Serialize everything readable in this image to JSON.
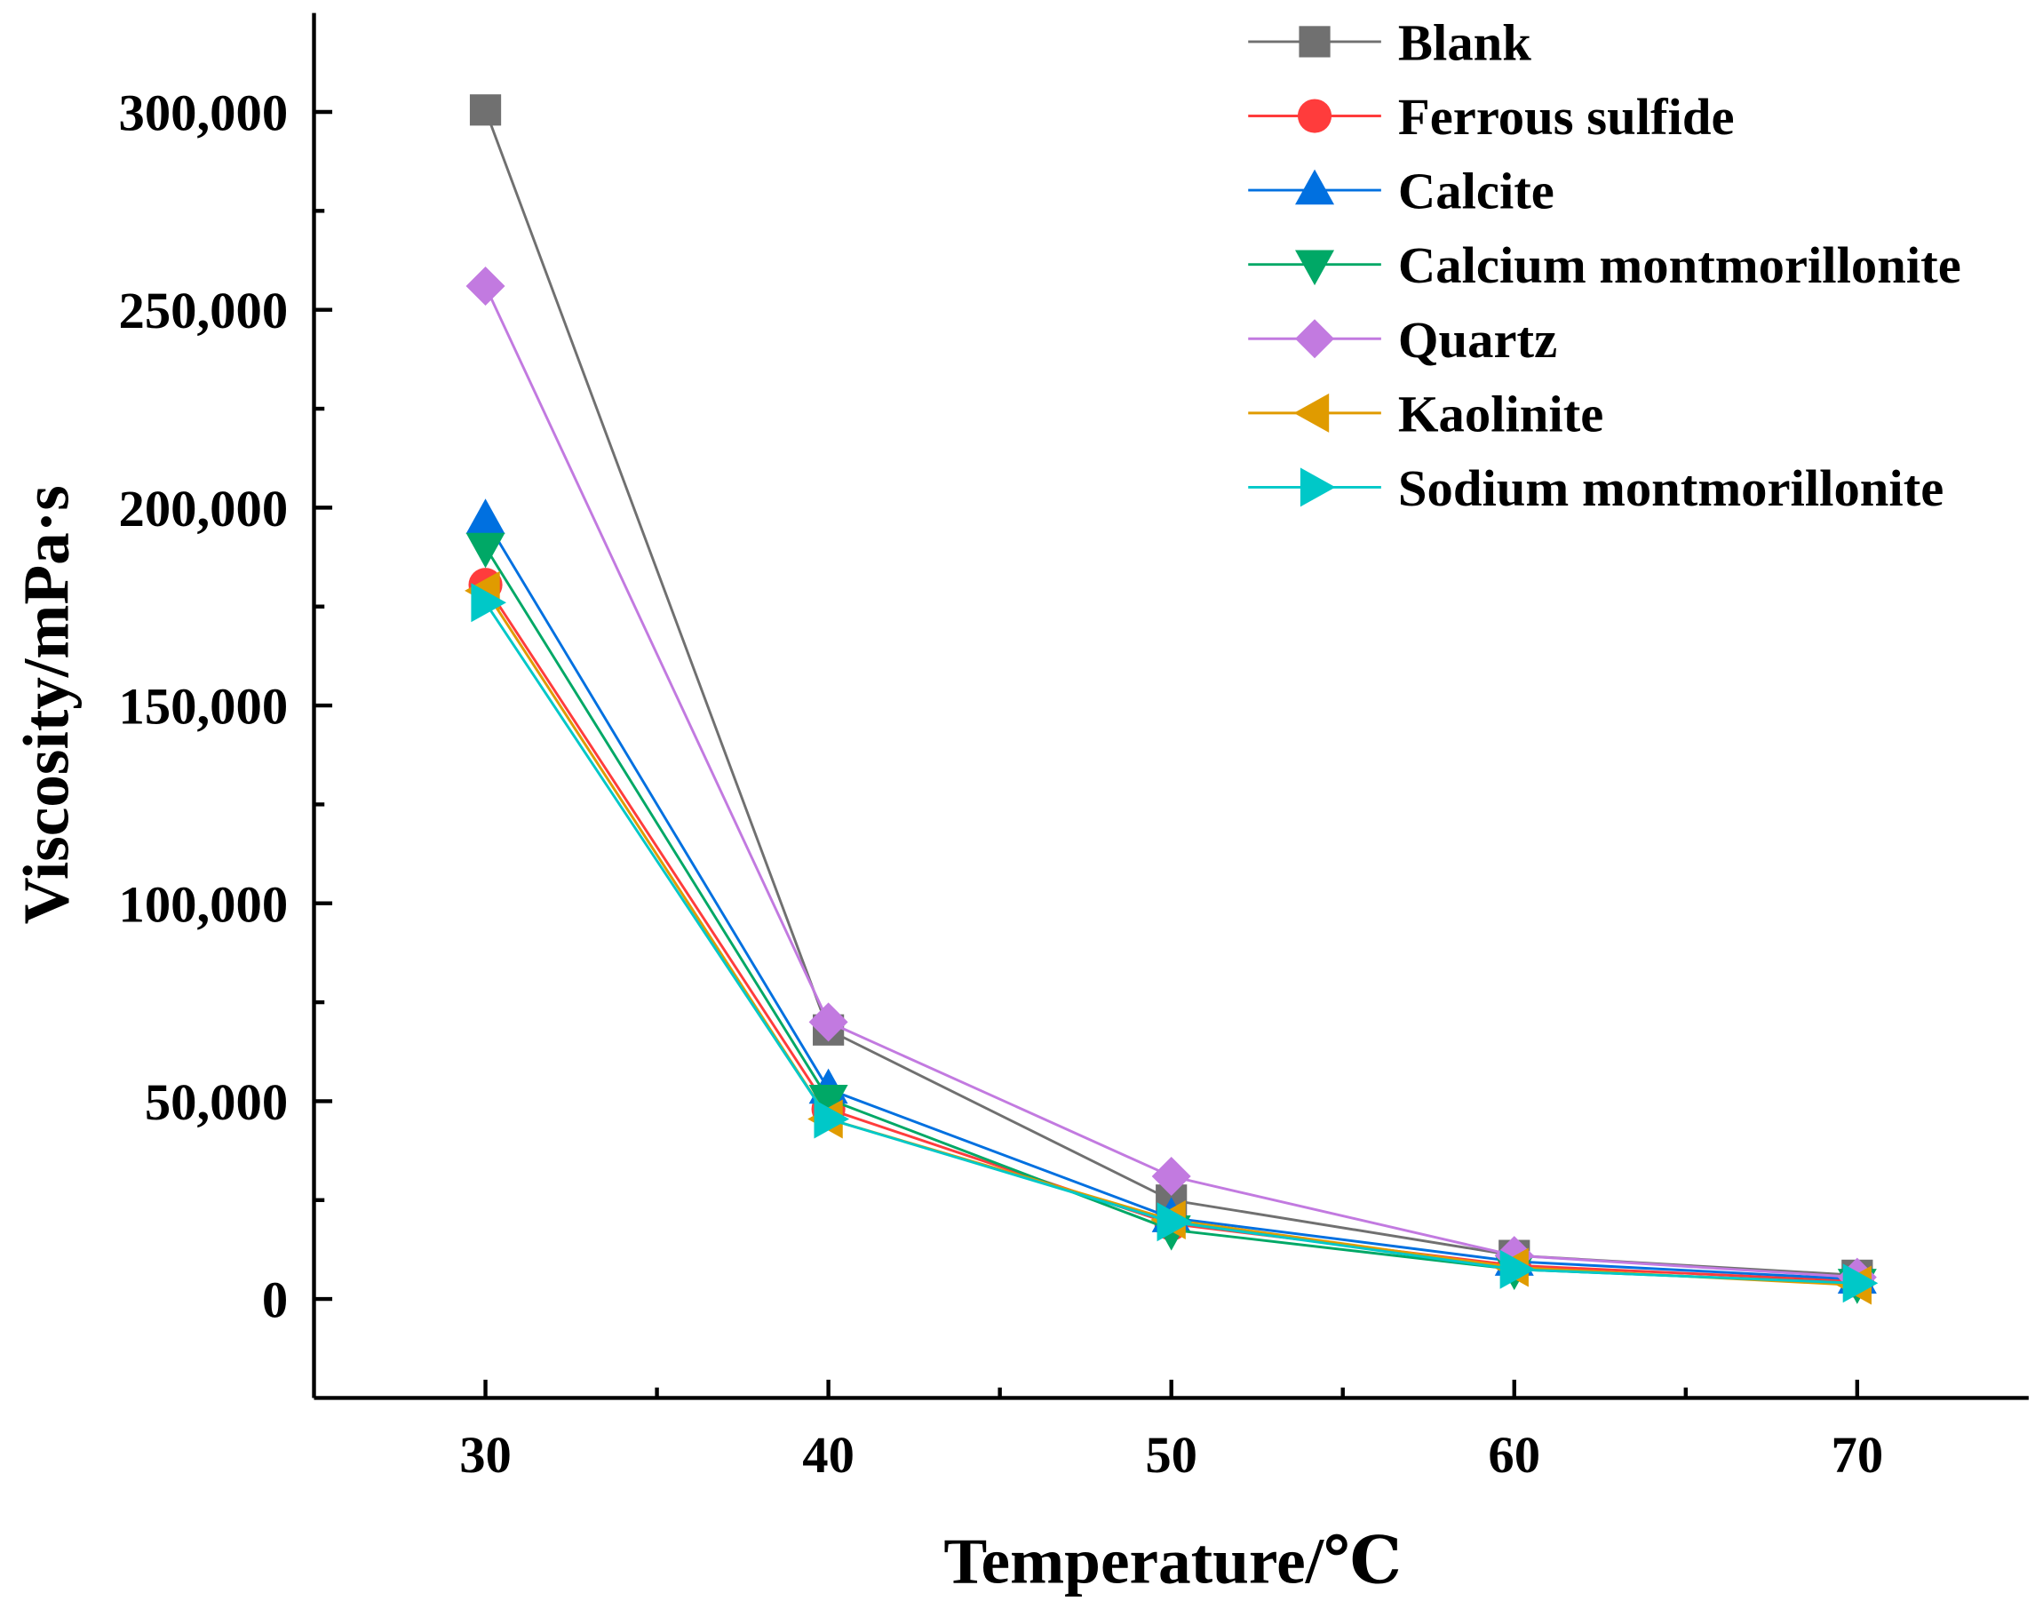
{
  "chart_data": {
    "type": "line",
    "title": "",
    "xlabel": "Temperature/℃",
    "ylabel": "Viscosity/mPa·s",
    "x": [
      30,
      40,
      50,
      60,
      70
    ],
    "xlim": [
      25,
      75
    ],
    "ylim": [
      -25000,
      325000
    ],
    "xticks": [
      30,
      40,
      50,
      60,
      70
    ],
    "xtick_labels": [
      "30",
      "40",
      "50",
      "60",
      "70"
    ],
    "yticks": [
      0,
      50000,
      100000,
      150000,
      200000,
      250000,
      300000
    ],
    "ytick_labels": [
      "0",
      "50,000",
      "100,000",
      "150,000",
      "200,000",
      "250,000",
      "300,000"
    ],
    "grid": false,
    "legend_position": "top-right",
    "series": [
      {
        "name": "Blank",
        "color": "#707070",
        "marker": "square",
        "values": [
          300500,
          68000,
          25000,
          11000,
          6000
        ]
      },
      {
        "name": "Ferrous sulfide",
        "color": "#FF3C3C",
        "marker": "circle",
        "values": [
          180500,
          48000,
          19000,
          8500,
          4500
        ]
      },
      {
        "name": "Calcite",
        "color": "#0070E0",
        "marker": "triangle-up",
        "values": [
          197000,
          53000,
          20500,
          9500,
          5000
        ]
      },
      {
        "name": "Calcium montmorillonite",
        "color": "#00A866",
        "marker": "triangle-down",
        "values": [
          190000,
          50500,
          17500,
          7500,
          4000
        ]
      },
      {
        "name": "Quartz",
        "color": "#C27AE0",
        "marker": "diamond",
        "values": [
          256000,
          70000,
          31000,
          11000,
          5500
        ]
      },
      {
        "name": "Kaolinite",
        "color": "#E09B00",
        "marker": "triangle-left",
        "values": [
          179000,
          45500,
          20000,
          8000,
          3500
        ]
      },
      {
        "name": "Sodium montmorillonite",
        "color": "#00C8C8",
        "marker": "triangle-right",
        "values": [
          176000,
          45500,
          19500,
          7500,
          4000
        ]
      }
    ]
  }
}
